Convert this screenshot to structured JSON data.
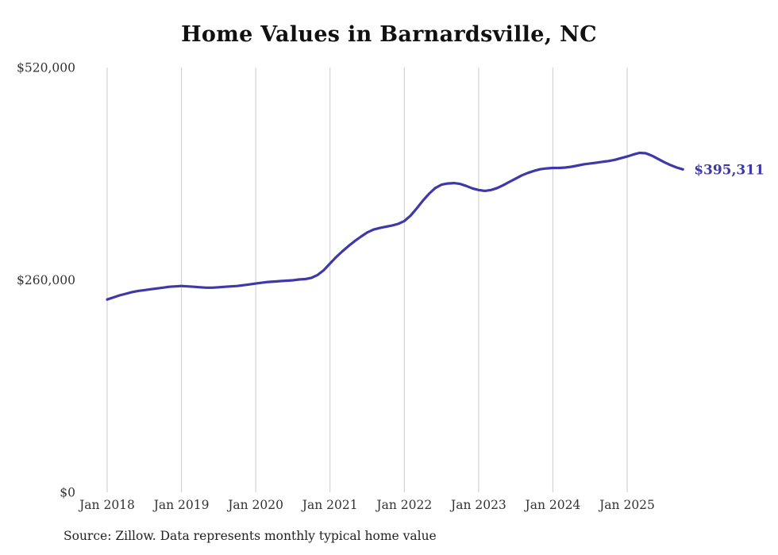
{
  "chart": {
    "title": "Home Values in Barnardsville, NC",
    "source": "Source: Zillow. Data represents monthly typical home value",
    "latest_value_label": "$395,311"
  },
  "chart_data": {
    "type": "line",
    "title": "Home Values in Barnardsville, NC",
    "ylabel": "",
    "xlabel": "",
    "ylim": [
      0,
      520000
    ],
    "grid": "vertical",
    "legend": "none",
    "line_color": "#3E38A8",
    "gridline_color": "#CBCBCB",
    "y_ticks": [
      {
        "value": 0,
        "label": "$0"
      },
      {
        "value": 260000,
        "label": "$260,000"
      },
      {
        "value": 520000,
        "label": "$520,000"
      }
    ],
    "x_tick_labels": [
      "Jan 2018",
      "Jan 2019",
      "Jan 2020",
      "Jan 2021",
      "Jan 2022",
      "Jan 2023",
      "Jan 2024",
      "Jan 2025"
    ],
    "annotation": {
      "text": "$395,311",
      "value": 395311
    },
    "x": [
      "2018-01",
      "2018-02",
      "2018-03",
      "2018-04",
      "2018-05",
      "2018-06",
      "2018-07",
      "2018-08",
      "2018-09",
      "2018-10",
      "2018-11",
      "2018-12",
      "2019-01",
      "2019-02",
      "2019-03",
      "2019-04",
      "2019-05",
      "2019-06",
      "2019-07",
      "2019-08",
      "2019-09",
      "2019-10",
      "2019-11",
      "2019-12",
      "2020-01",
      "2020-02",
      "2020-03",
      "2020-04",
      "2020-05",
      "2020-06",
      "2020-07",
      "2020-08",
      "2020-09",
      "2020-10",
      "2020-11",
      "2020-12",
      "2021-01",
      "2021-02",
      "2021-03",
      "2021-04",
      "2021-05",
      "2021-06",
      "2021-07",
      "2021-08",
      "2021-09",
      "2021-10",
      "2021-11",
      "2021-12",
      "2022-01",
      "2022-02",
      "2022-03",
      "2022-04",
      "2022-05",
      "2022-06",
      "2022-07",
      "2022-08",
      "2022-09",
      "2022-10",
      "2022-11",
      "2022-12",
      "2023-01",
      "2023-02",
      "2023-03",
      "2023-04",
      "2023-05",
      "2023-06",
      "2023-07",
      "2023-08",
      "2023-09",
      "2023-10",
      "2023-11",
      "2023-12",
      "2024-01",
      "2024-02",
      "2024-03",
      "2024-04",
      "2024-05",
      "2024-06",
      "2024-07",
      "2024-08",
      "2024-09",
      "2024-10",
      "2024-11",
      "2024-12",
      "2025-01",
      "2025-02",
      "2025-03",
      "2025-04",
      "2025-05",
      "2025-06",
      "2025-07",
      "2025-08",
      "2025-09",
      "2025-10"
    ],
    "values": [
      236000,
      238500,
      241000,
      243000,
      245000,
      246500,
      247500,
      248500,
      249500,
      250500,
      251500,
      252000,
      252500,
      252000,
      251500,
      251000,
      250500,
      250500,
      251000,
      251500,
      252000,
      252500,
      253500,
      254500,
      255500,
      256500,
      257500,
      258000,
      258500,
      259000,
      259500,
      260500,
      261000,
      262500,
      266000,
      272000,
      280000,
      288000,
      295000,
      301500,
      307500,
      313000,
      318000,
      321500,
      323500,
      325000,
      326500,
      328500,
      332000,
      338500,
      347500,
      357000,
      365500,
      372500,
      376500,
      378000,
      378500,
      377500,
      375000,
      372000,
      370000,
      369000,
      370000,
      372500,
      376000,
      380000,
      384000,
      388000,
      391000,
      393500,
      395500,
      396500,
      397000,
      397000,
      397500,
      398500,
      400000,
      401500,
      402500,
      403500,
      404500,
      405500,
      407000,
      409000,
      411000,
      413500,
      415500,
      415000,
      412000,
      408000,
      404000,
      400500,
      397500,
      395311
    ]
  }
}
